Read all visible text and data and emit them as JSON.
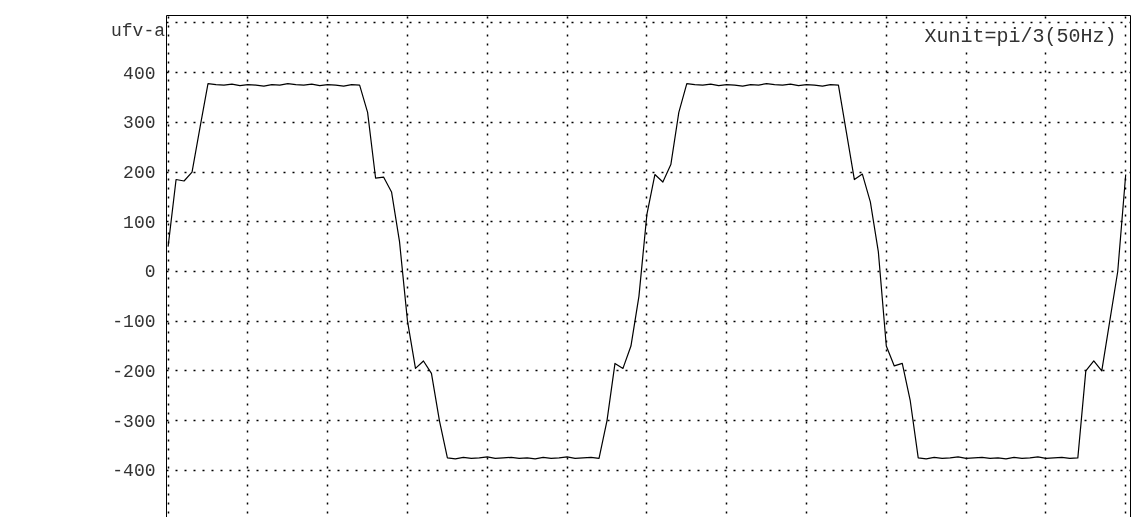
{
  "chart_data": {
    "type": "line",
    "ylabel": "ufv-a",
    "annotations": [
      "Xunit=pi/3(50Hz)"
    ],
    "categories": [
      null,
      null,
      null,
      null,
      null,
      null,
      null,
      null,
      null,
      null,
      null,
      null,
      null,
      null,
      null,
      null,
      null,
      null,
      null,
      null,
      null,
      null,
      null,
      null,
      null,
      null,
      null,
      null,
      null,
      null,
      null,
      null,
      null,
      null,
      null,
      null,
      null,
      null,
      null,
      null,
      null,
      null,
      null,
      null,
      null,
      null,
      null,
      null,
      null,
      null,
      null,
      null,
      null,
      null,
      null,
      null,
      null,
      null,
      null,
      null,
      null,
      null,
      null,
      null,
      null,
      null,
      null,
      null,
      null,
      null,
      null,
      null,
      null,
      null,
      null,
      null,
      null,
      null,
      null,
      null,
      null,
      null,
      null,
      null,
      null,
      null,
      null,
      null,
      null,
      null,
      null,
      null,
      null,
      null,
      null,
      null,
      null,
      null,
      null,
      null,
      null,
      null,
      null,
      null,
      null,
      null,
      null,
      null,
      null,
      null,
      null,
      null,
      null,
      null,
      null,
      null,
      null,
      null,
      null,
      null,
      null
    ],
    "series": [
      {
        "color": "#000000",
        "values": [
          50,
          185,
          182,
          200,
          290,
          378,
          376,
          375,
          377,
          374,
          376,
          375,
          373,
          376,
          375,
          378,
          376,
          375,
          377,
          374,
          376,
          375,
          373,
          376,
          375,
          320,
          188,
          190,
          160,
          60,
          -100,
          -195,
          -180,
          -205,
          -300,
          -375,
          -377,
          -374,
          -376,
          -375,
          -373,
          -376,
          -375,
          -374,
          -376,
          -375,
          -377,
          -374,
          -376,
          -375,
          -373,
          -376,
          -375,
          -374,
          -376,
          -300,
          -185,
          -195,
          -150,
          -50,
          115,
          195,
          180,
          215,
          320,
          378,
          376,
          375,
          377,
          374,
          376,
          375,
          373,
          376,
          375,
          378,
          376,
          375,
          377,
          374,
          376,
          375,
          373,
          376,
          375,
          280,
          185,
          196,
          140,
          40,
          -150,
          -190,
          -185,
          -260,
          -375,
          -377,
          -374,
          -376,
          -375,
          -373,
          -376,
          -375,
          -374,
          -376,
          -375,
          -377,
          -374,
          -376,
          -375,
          -373,
          -376,
          -375,
          -374,
          -376,
          -375,
          -200,
          -180,
          -200,
          -100,
          0,
          195
        ]
      }
    ],
    "ylim": [
      -505,
      515
    ],
    "yticks": [
      -400,
      -300,
      -200,
      -100,
      0,
      100,
      200,
      300,
      400,
      {
        "value": 500,
        "label": null
      }
    ],
    "grid": true,
    "marker": "none",
    "line_style": "solid"
  }
}
